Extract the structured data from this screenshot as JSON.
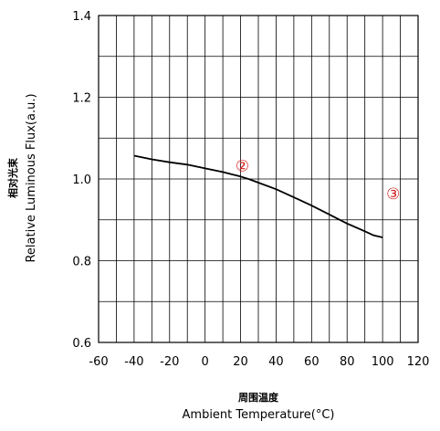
{
  "chart_data": {
    "type": "line",
    "title": "",
    "xlabel_cn": "周围温度",
    "xlabel": "Ambient Temperature(°C)",
    "ylabel_cn": "相对光束",
    "ylabel": "Relative Luminous Flux(a.u.)",
    "xlim": [
      -60,
      120
    ],
    "ylim": [
      0.6,
      1.4
    ],
    "x_ticks": [
      -60,
      -40,
      -20,
      0,
      20,
      40,
      60,
      80,
      100,
      120
    ],
    "y_ticks": [
      0.6,
      0.8,
      1.0,
      1.2,
      1.4
    ],
    "y_tick_labels": [
      "0.6",
      "0.8",
      "1.0",
      "1.2",
      "1.4"
    ],
    "x_grid_step": 10,
    "y_grid_step": 0.1,
    "grid": true,
    "series": [
      {
        "color": "#000000",
        "x": [
          -40,
          -30,
          -20,
          -10,
          0,
          10,
          20,
          25,
          30,
          40,
          50,
          60,
          70,
          80,
          90,
          95,
          100
        ],
        "y": [
          1.057,
          1.048,
          1.041,
          1.035,
          1.026,
          1.017,
          1.006,
          0.999,
          0.991,
          0.975,
          0.955,
          0.935,
          0.913,
          0.891,
          0.872,
          0.862,
          0.857
        ]
      }
    ],
    "annotations": [
      {
        "label": "②",
        "x": 21,
        "y": 1.037
      },
      {
        "label": "③",
        "x": 106,
        "y": 0.969
      }
    ]
  },
  "colors": {
    "curve": "#000000",
    "grid": "#000000",
    "annotation": "#d42020"
  }
}
